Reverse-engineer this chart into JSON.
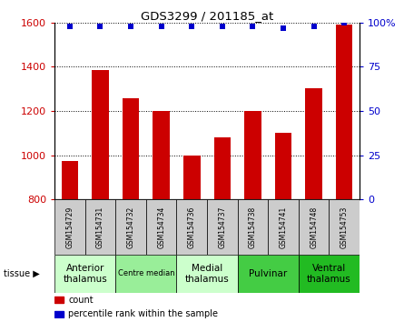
{
  "title": "GDS3299 / 201185_at",
  "samples": [
    "GSM154729",
    "GSM154731",
    "GSM154732",
    "GSM154734",
    "GSM154736",
    "GSM154737",
    "GSM154738",
    "GSM154741",
    "GSM154748",
    "GSM154753"
  ],
  "counts": [
    975,
    1385,
    1260,
    1200,
    1000,
    1080,
    1200,
    1100,
    1305,
    1590
  ],
  "percentiles": [
    98,
    98,
    98,
    98,
    98,
    98,
    98,
    97,
    98,
    100
  ],
  "ylim": [
    800,
    1600
  ],
  "y2lim": [
    0,
    100
  ],
  "yticks": [
    800,
    1000,
    1200,
    1400,
    1600
  ],
  "y2ticks": [
    0,
    25,
    50,
    75,
    100
  ],
  "y2ticklabels": [
    "0",
    "25",
    "50",
    "75",
    "100%"
  ],
  "bar_color": "#cc0000",
  "dot_color": "#0000cc",
  "tissue_groups": [
    {
      "label": "Anterior\nthalamus",
      "start": 0,
      "end": 2,
      "color": "#ccffcc",
      "fontsize": 7.5
    },
    {
      "label": "Centre median",
      "start": 2,
      "end": 4,
      "color": "#99ee99",
      "fontsize": 6
    },
    {
      "label": "Medial\nthalamus",
      "start": 4,
      "end": 6,
      "color": "#ccffcc",
      "fontsize": 7.5
    },
    {
      "label": "Pulvinar",
      "start": 6,
      "end": 8,
      "color": "#44cc44",
      "fontsize": 7.5
    },
    {
      "label": "Ventral\nthalamus",
      "start": 8,
      "end": 10,
      "color": "#22bb22",
      "fontsize": 7.5
    }
  ],
  "sample_box_color": "#cccccc",
  "grid_color": "#000000",
  "left_label_color": "#cc0000",
  "right_label_color": "#0000cc",
  "tissue_label": "tissue",
  "legend_count_label": "count",
  "legend_pct_label": "percentile rank within the sample",
  "bar_width": 0.55
}
